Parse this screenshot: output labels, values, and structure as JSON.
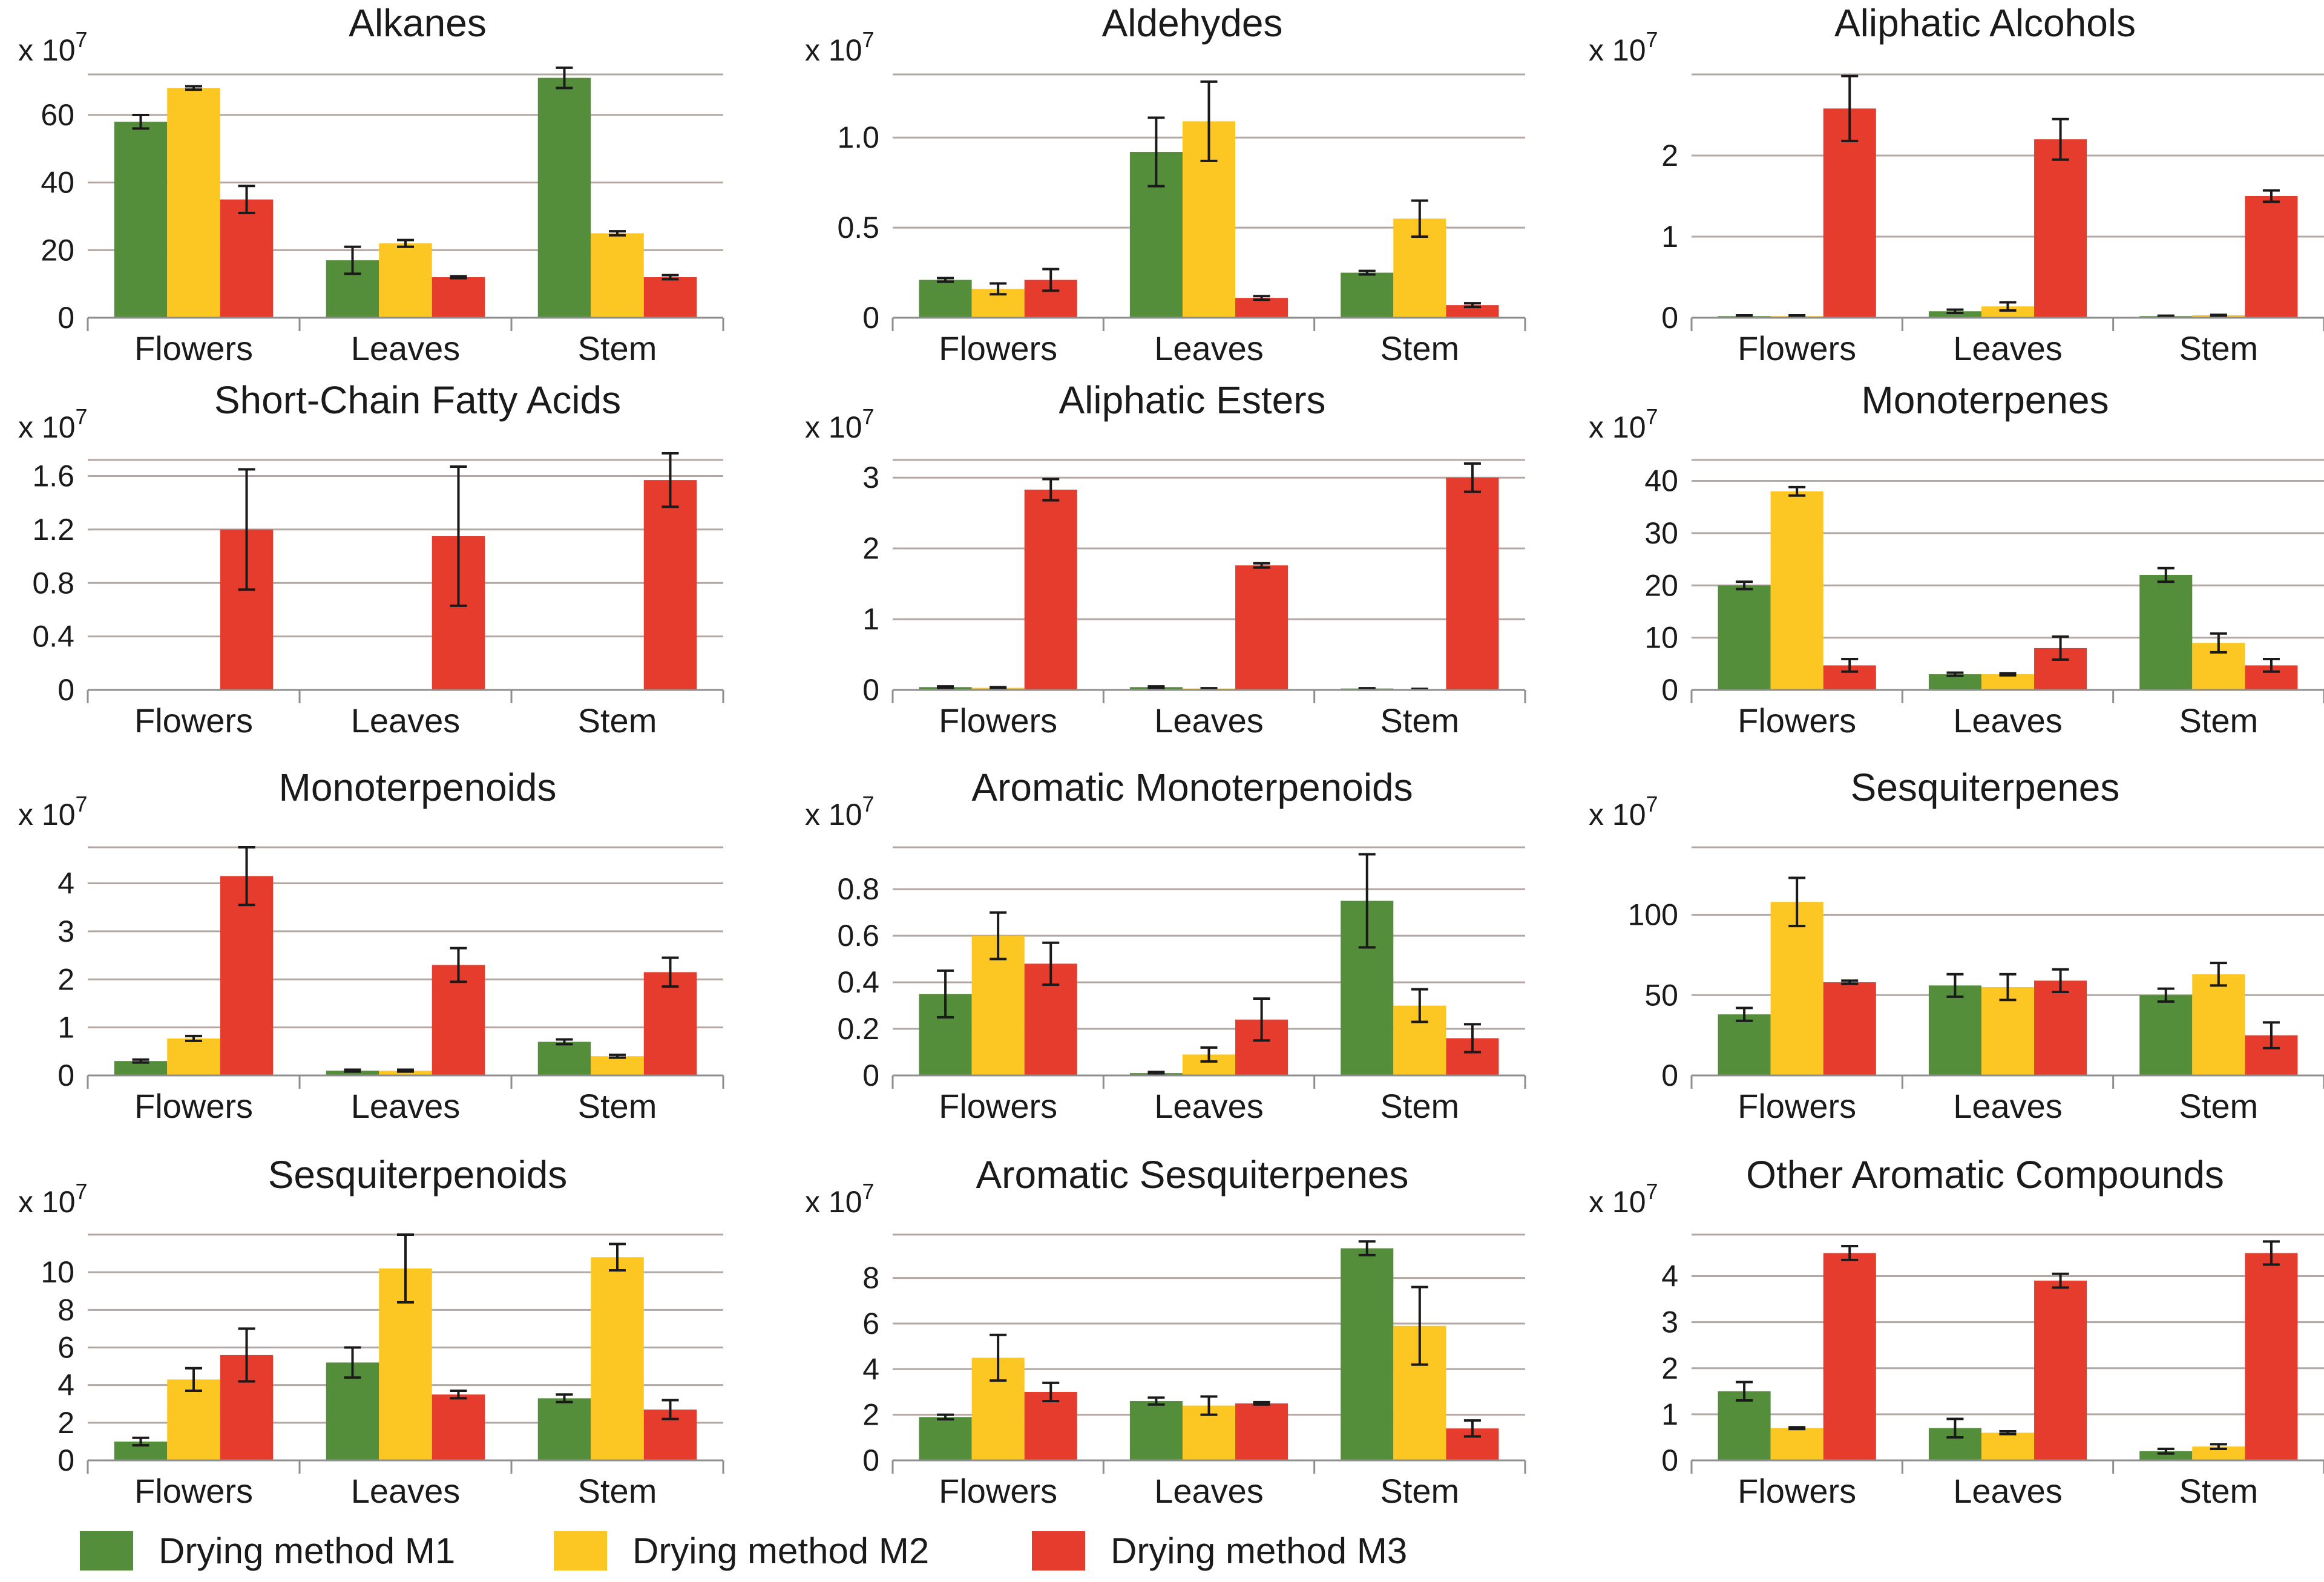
{
  "colors": {
    "M1": "#548e3a",
    "M2": "#fcc623",
    "M3": "#e63c2e"
  },
  "legend": [
    {
      "key": "M1",
      "label": "Drying method M1"
    },
    {
      "key": "M2",
      "label": "Drying method M2"
    },
    {
      "key": "M3",
      "label": "Drying method M3"
    }
  ],
  "chart_data": [
    {
      "type": "bar",
      "title": "Alkanes",
      "exponent_label": "x 10",
      "exponent": "7",
      "categories": [
        "Flowers",
        "Leaves",
        "Stem"
      ],
      "ylim": [
        0,
        72
      ],
      "yticks": [
        0,
        20,
        40,
        60
      ],
      "tick_labels": [
        "0",
        "20",
        "40",
        "60"
      ],
      "series": [
        {
          "key": "M1",
          "values": [
            58,
            17,
            71
          ],
          "errors": [
            2,
            4,
            3
          ]
        },
        {
          "key": "M2",
          "values": [
            68,
            22,
            25
          ],
          "errors": [
            0.5,
            1,
            0.6
          ]
        },
        {
          "key": "M3",
          "values": [
            35,
            12,
            12
          ],
          "errors": [
            4,
            0.3,
            0.6
          ]
        }
      ]
    },
    {
      "type": "bar",
      "title": "Aldehydes",
      "exponent_label": "x 10",
      "exponent": "7",
      "categories": [
        "Flowers",
        "Leaves",
        "Stem"
      ],
      "ylim": [
        0,
        1.35
      ],
      "yticks": [
        0,
        0.5,
        1.0
      ],
      "tick_labels": [
        "0",
        "0.5",
        "1.0"
      ],
      "series": [
        {
          "key": "M1",
          "values": [
            0.21,
            0.92,
            0.25
          ],
          "errors": [
            0.01,
            0.19,
            0.01
          ]
        },
        {
          "key": "M2",
          "values": [
            0.16,
            1.09,
            0.55
          ],
          "errors": [
            0.03,
            0.22,
            0.1
          ]
        },
        {
          "key": "M3",
          "values": [
            0.21,
            0.11,
            0.07
          ],
          "errors": [
            0.06,
            0.01,
            0.01
          ]
        }
      ]
    },
    {
      "type": "bar",
      "title": "Aliphatic Alcohols",
      "exponent_label": "x 10",
      "exponent": "7",
      "categories": [
        "Flowers",
        "Leaves",
        "Stem"
      ],
      "ylim": [
        0,
        3.0
      ],
      "yticks": [
        0,
        1,
        2
      ],
      "tick_labels": [
        "0",
        "1",
        "2"
      ],
      "series": [
        {
          "key": "M1",
          "values": [
            0.02,
            0.08,
            0.02
          ],
          "errors": [
            0.01,
            0.02,
            0.005
          ]
        },
        {
          "key": "M2",
          "values": [
            0.02,
            0.14,
            0.03
          ],
          "errors": [
            0.01,
            0.05,
            0.005
          ]
        },
        {
          "key": "M3",
          "values": [
            2.58,
            2.2,
            1.5
          ],
          "errors": [
            0.4,
            0.25,
            0.07
          ]
        }
      ]
    },
    {
      "type": "bar",
      "title": "Short-Chain Fatty Acids",
      "exponent_label": "x 10",
      "exponent": "7",
      "categories": [
        "Flowers",
        "Leaves",
        "Stem"
      ],
      "ylim": [
        0,
        1.72
      ],
      "yticks": [
        0,
        0.4,
        0.8,
        1.2,
        1.6
      ],
      "tick_labels": [
        "0",
        "0.4",
        "0.8",
        "1.2",
        "1.6"
      ],
      "series": [
        {
          "key": "M1",
          "values": [
            0,
            0,
            0
          ],
          "errors": [
            0,
            0,
            0
          ]
        },
        {
          "key": "M2",
          "values": [
            0,
            0,
            0
          ],
          "errors": [
            0,
            0,
            0
          ]
        },
        {
          "key": "M3",
          "values": [
            1.2,
            1.15,
            1.57
          ],
          "errors": [
            0.45,
            0.52,
            0.2
          ]
        }
      ]
    },
    {
      "type": "bar",
      "title": "Aliphatic Esters",
      "exponent_label": "x 10",
      "exponent": "7",
      "categories": [
        "Flowers",
        "Leaves",
        "Stem"
      ],
      "ylim": [
        0,
        3.25
      ],
      "yticks": [
        0,
        1,
        2,
        3
      ],
      "tick_labels": [
        "0",
        "1",
        "2",
        "3"
      ],
      "series": [
        {
          "key": "M1",
          "values": [
            0.04,
            0.04,
            0.02
          ],
          "errors": [
            0.01,
            0.01,
            0.005
          ]
        },
        {
          "key": "M2",
          "values": [
            0.03,
            0.02,
            0.01
          ],
          "errors": [
            0.01,
            0.005,
            0.005
          ]
        },
        {
          "key": "M3",
          "values": [
            2.83,
            1.76,
            3.0
          ],
          "errors": [
            0.15,
            0.03,
            0.2
          ]
        }
      ]
    },
    {
      "type": "bar",
      "title": "Monoterpenes",
      "exponent_label": "x 10",
      "exponent": "7",
      "categories": [
        "Flowers",
        "Leaves",
        "Stem"
      ],
      "ylim": [
        0,
        44
      ],
      "yticks": [
        0,
        10,
        20,
        30,
        40
      ],
      "tick_labels": [
        "0",
        "10",
        "20",
        "30",
        "40"
      ],
      "series": [
        {
          "key": "M1",
          "values": [
            20,
            3,
            22
          ],
          "errors": [
            0.7,
            0.3,
            1.3
          ]
        },
        {
          "key": "M2",
          "values": [
            38,
            3,
            9
          ],
          "errors": [
            0.8,
            0.2,
            1.8
          ]
        },
        {
          "key": "M3",
          "values": [
            4.7,
            8,
            4.7
          ],
          "errors": [
            1.2,
            2.2,
            1.2
          ]
        }
      ]
    },
    {
      "type": "bar",
      "title": "Monoterpenoids",
      "exponent_label": "x 10",
      "exponent": "7",
      "categories": [
        "Flowers",
        "Leaves",
        "Stem"
      ],
      "ylim": [
        0,
        4.75
      ],
      "yticks": [
        0,
        1,
        2,
        3,
        4
      ],
      "tick_labels": [
        "0",
        "1",
        "2",
        "3",
        "4"
      ],
      "series": [
        {
          "key": "M1",
          "values": [
            0.3,
            0.1,
            0.7
          ],
          "errors": [
            0.03,
            0.02,
            0.05
          ]
        },
        {
          "key": "M2",
          "values": [
            0.77,
            0.1,
            0.4
          ],
          "errors": [
            0.05,
            0.02,
            0.03
          ]
        },
        {
          "key": "M3",
          "values": [
            4.15,
            2.3,
            2.15
          ],
          "errors": [
            0.6,
            0.35,
            0.3
          ]
        }
      ]
    },
    {
      "type": "bar",
      "title": "Aromatic Monoterpenoids",
      "exponent_label": "x 10",
      "exponent": "7",
      "categories": [
        "Flowers",
        "Leaves",
        "Stem"
      ],
      "ylim": [
        0,
        0.98
      ],
      "yticks": [
        0,
        0.2,
        0.4,
        0.6,
        0.8
      ],
      "tick_labels": [
        "0",
        "0.2",
        "0.4",
        "0.6",
        "0.8"
      ],
      "series": [
        {
          "key": "M1",
          "values": [
            0.35,
            0.01,
            0.75
          ],
          "errors": [
            0.1,
            0.005,
            0.2
          ]
        },
        {
          "key": "M2",
          "values": [
            0.6,
            0.09,
            0.3
          ],
          "errors": [
            0.1,
            0.03,
            0.07
          ]
        },
        {
          "key": "M3",
          "values": [
            0.48,
            0.24,
            0.16
          ],
          "errors": [
            0.09,
            0.09,
            0.06
          ]
        }
      ]
    },
    {
      "type": "bar",
      "title": "Sesquiterpenes",
      "exponent_label": "x 10",
      "exponent": "7",
      "categories": [
        "Flowers",
        "Leaves",
        "Stem"
      ],
      "ylim": [
        0,
        142
      ],
      "yticks": [
        0,
        50,
        100
      ],
      "tick_labels": [
        "0",
        "50",
        "100"
      ],
      "series": [
        {
          "key": "M1",
          "values": [
            38,
            56,
            50
          ],
          "errors": [
            4,
            7,
            4
          ]
        },
        {
          "key": "M2",
          "values": [
            108,
            55,
            63
          ],
          "errors": [
            15,
            8,
            7
          ]
        },
        {
          "key": "M3",
          "values": [
            58,
            59,
            25
          ],
          "errors": [
            1,
            7,
            8
          ]
        }
      ]
    },
    {
      "type": "bar",
      "title": "Sesquiterpenoids",
      "exponent_label": "x 10",
      "exponent": "7",
      "categories": [
        "Flowers",
        "Leaves",
        "Stem"
      ],
      "ylim": [
        0,
        12
      ],
      "yticks": [
        0,
        2,
        4,
        6,
        8,
        10
      ],
      "tick_labels": [
        "0",
        "2",
        "4",
        "6",
        "8",
        "10"
      ],
      "series": [
        {
          "key": "M1",
          "values": [
            1.0,
            5.2,
            3.3
          ],
          "errors": [
            0.2,
            0.8,
            0.2
          ]
        },
        {
          "key": "M2",
          "values": [
            4.3,
            10.2,
            10.8
          ],
          "errors": [
            0.6,
            1.8,
            0.7
          ]
        },
        {
          "key": "M3",
          "values": [
            5.6,
            3.5,
            2.7
          ],
          "errors": [
            1.4,
            0.2,
            0.5
          ]
        }
      ]
    },
    {
      "type": "bar",
      "title": "Aromatic Sesquiterpenes",
      "exponent_label": "x 10",
      "exponent": "7",
      "categories": [
        "Flowers",
        "Leaves",
        "Stem"
      ],
      "ylim": [
        0,
        9.9
      ],
      "yticks": [
        0,
        2,
        4,
        6,
        8
      ],
      "tick_labels": [
        "0",
        "2",
        "4",
        "6",
        "8"
      ],
      "series": [
        {
          "key": "M1",
          "values": [
            1.9,
            2.6,
            9.3
          ],
          "errors": [
            0.1,
            0.15,
            0.3
          ]
        },
        {
          "key": "M2",
          "values": [
            4.5,
            2.4,
            5.9
          ],
          "errors": [
            1.0,
            0.4,
            1.7
          ]
        },
        {
          "key": "M3",
          "values": [
            3.0,
            2.5,
            1.4
          ],
          "errors": [
            0.4,
            0.05,
            0.35
          ]
        }
      ]
    },
    {
      "type": "bar",
      "title": "Other Aromatic Compounds",
      "exponent_label": "x 10",
      "exponent": "7",
      "categories": [
        "Flowers",
        "Leaves",
        "Stem"
      ],
      "ylim": [
        0,
        4.9
      ],
      "yticks": [
        0,
        1,
        2,
        3,
        4
      ],
      "tick_labels": [
        "0",
        "1",
        "2",
        "3",
        "4"
      ],
      "series": [
        {
          "key": "M1",
          "values": [
            1.5,
            0.7,
            0.2
          ],
          "errors": [
            0.2,
            0.2,
            0.05
          ]
        },
        {
          "key": "M2",
          "values": [
            0.7,
            0.6,
            0.3
          ],
          "errors": [
            0.02,
            0.03,
            0.05
          ]
        },
        {
          "key": "M3",
          "values": [
            4.5,
            3.9,
            4.5
          ],
          "errors": [
            0.15,
            0.15,
            0.25
          ]
        }
      ]
    }
  ]
}
